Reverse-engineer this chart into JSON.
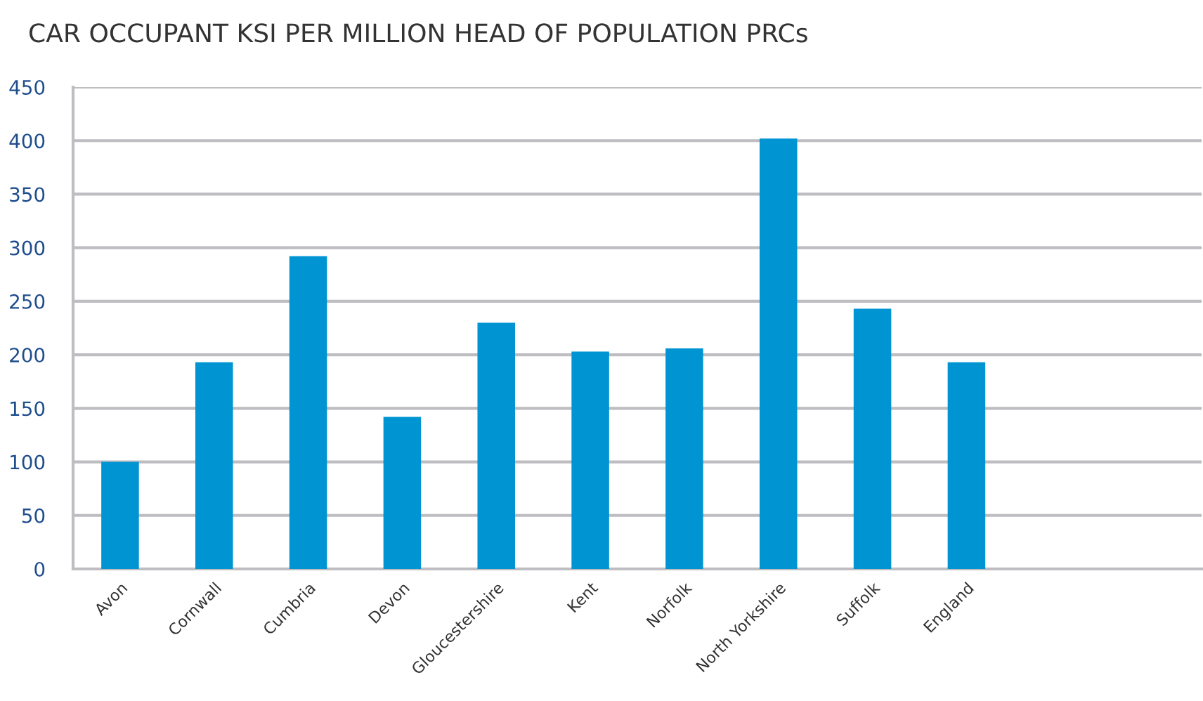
{
  "chart_data": {
    "type": "bar",
    "title": "CAR OCCUPANT KSI PER MILLION HEAD OF POPULATION PRCs",
    "categories": [
      "Avon",
      "Cornwall",
      "Cumbria",
      "Devon",
      "Gloucestershire",
      "Kent",
      "Norfolk",
      "North Yorkshire",
      "Suffolk",
      "England",
      null,
      null
    ],
    "values": [
      100,
      193,
      292,
      142,
      230,
      203,
      206,
      402,
      243,
      193,
      null,
      null
    ],
    "color": "#0094d3",
    "ylim": [
      0,
      450
    ],
    "yticks": [
      0,
      50,
      100,
      150,
      200,
      250,
      300,
      350,
      400,
      450
    ],
    "grid": "y"
  }
}
